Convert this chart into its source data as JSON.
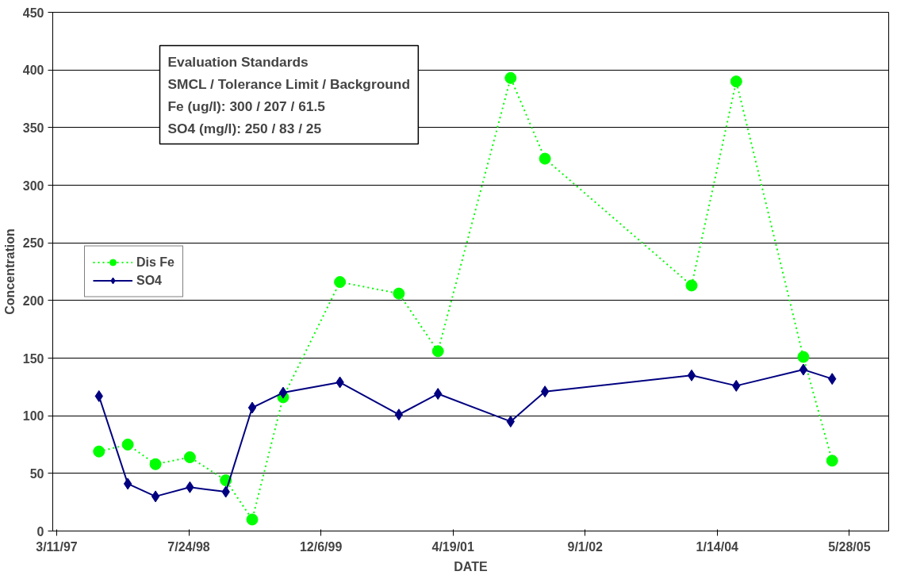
{
  "chart_data": {
    "type": "line",
    "xlabel": "DATE",
    "ylabel": "Concentration",
    "x": [
      "1997-08-18",
      "1997-12-05",
      "1998-03-20",
      "1998-07-28",
      "1998-12-11",
      "1999-03-21",
      "1999-07-16",
      "2000-02-16",
      "2000-09-26",
      "2001-02-21",
      "2001-11-23",
      "2002-04-02",
      "2003-10-09",
      "2004-03-26",
      "2004-12-05",
      "2005-03-24"
    ],
    "series": [
      {
        "name": "Dis Fe",
        "color": "#00ff00",
        "marker": "circle",
        "line_style": "dotted",
        "values": [
          69,
          75,
          58,
          64,
          44,
          10,
          116,
          216,
          206,
          156,
          393,
          323,
          213,
          390,
          151,
          61
        ]
      },
      {
        "name": "SO4",
        "color": "#000080",
        "marker": "diamond",
        "line_style": "solid",
        "values": [
          117,
          41,
          30,
          38,
          34,
          107,
          120,
          129,
          101,
          119,
          95,
          121,
          135,
          126,
          140,
          132
        ]
      }
    ],
    "xlim": [
      "1997-02-24",
      "2005-10-24"
    ],
    "xticks": [
      {
        "value": "1997-03-11",
        "label": "3/11/97"
      },
      {
        "value": "1998-07-24",
        "label": "7/24/98"
      },
      {
        "value": "1999-12-06",
        "label": "12/6/99"
      },
      {
        "value": "2001-04-19",
        "label": "4/19/01"
      },
      {
        "value": "2002-09-01",
        "label": "9/1/02"
      },
      {
        "value": "2004-01-14",
        "label": "1/14/04"
      },
      {
        "value": "2005-05-28",
        "label": "5/28/05"
      }
    ],
    "ylim": [
      0,
      450
    ],
    "yticks": [
      0,
      50,
      100,
      150,
      200,
      250,
      300,
      350,
      400,
      450
    ],
    "grid": "y",
    "legend": "left",
    "annotations": [
      "Evaluation Standards",
      "SMCL / Tolerance Limit / Background",
      "Fe (ug/l): 300 / 207 / 61.5",
      "SO4 (mg/l): 250 / 83 / 25"
    ]
  }
}
